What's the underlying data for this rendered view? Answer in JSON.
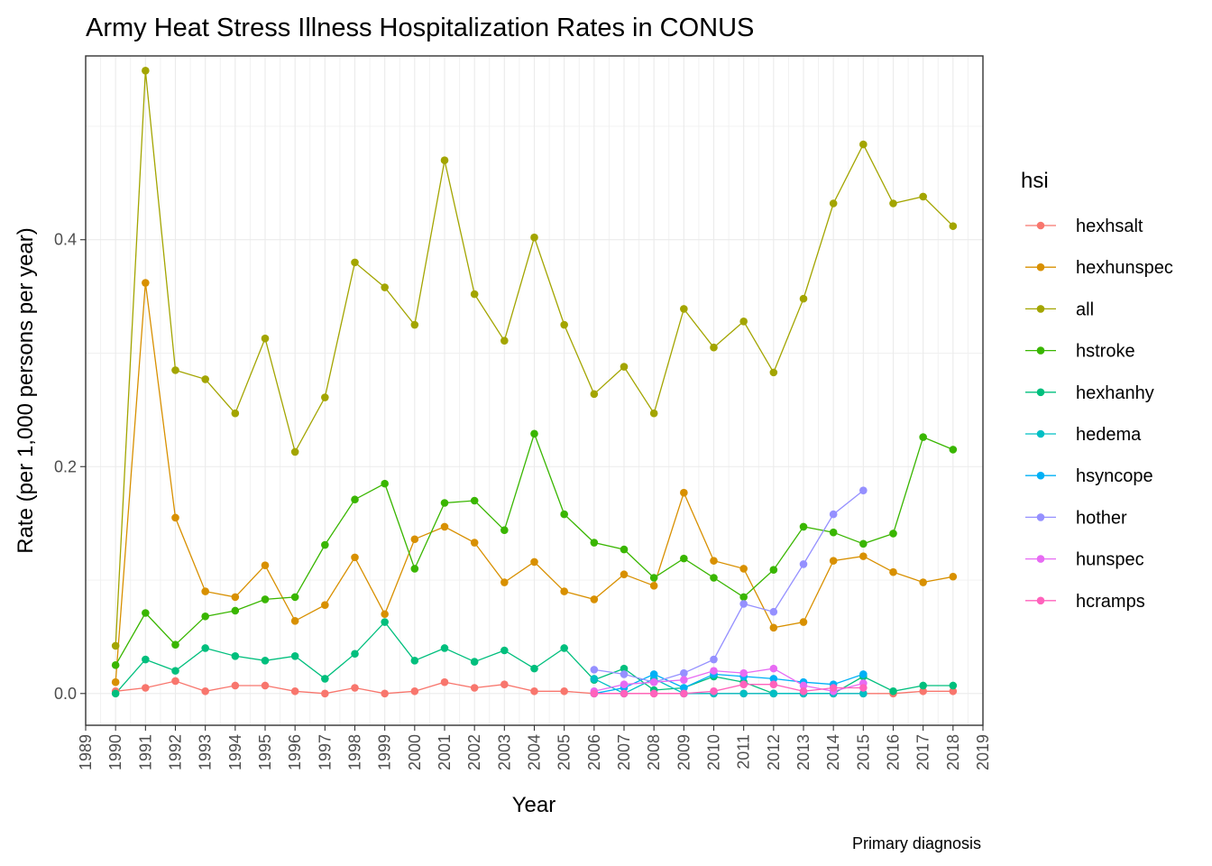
{
  "chart_data": {
    "type": "line",
    "title": "Army Heat Stress Illness Hospitalization Rates in CONUS",
    "xlabel": "Year",
    "ylabel": "Rate (per 1,000 persons per year)",
    "caption": "Primary diagnosis",
    "legend_title": "hsi",
    "legend_position": "right",
    "grid": true,
    "xlim": [
      1989,
      2019
    ],
    "ylim": [
      -0.028,
      0.562
    ],
    "x_ticks": [
      "1989",
      "1990",
      "1991",
      "1992",
      "1993",
      "1994",
      "1995",
      "1996",
      "1997",
      "1998",
      "1999",
      "2000",
      "2001",
      "2002",
      "2003",
      "2004",
      "2005",
      "2006",
      "2007",
      "2008",
      "2009",
      "2010",
      "2011",
      "2012",
      "2013",
      "2014",
      "2015",
      "2016",
      "2017",
      "2018",
      "2019"
    ],
    "y_ticks": [
      {
        "value": 0.0,
        "label": "0.0"
      },
      {
        "value": 0.2,
        "label": "0.2"
      },
      {
        "value": 0.4,
        "label": "0.4"
      }
    ],
    "series": [
      {
        "name": "hexhsalt",
        "color": "#F8766D",
        "x": [
          1990,
          1991,
          1992,
          1993,
          1994,
          1995,
          1996,
          1997,
          1998,
          1999,
          2000,
          2001,
          2002,
          2003,
          2004,
          2005,
          2006,
          2007,
          2008,
          2009,
          2010,
          2011,
          2012,
          2013,
          2014,
          2015,
          2016,
          2017,
          2018
        ],
        "y": [
          0.002,
          0.005,
          0.011,
          0.002,
          0.007,
          0.007,
          0.002,
          0.0,
          0.005,
          0.0,
          0.002,
          0.01,
          0.005,
          0.008,
          0.002,
          0.002,
          0.0,
          0.0,
          0.0,
          0.0,
          0.0,
          0.0,
          0.0,
          0.0,
          0.0,
          0.0,
          0.0,
          0.002,
          0.002
        ]
      },
      {
        "name": "hexhunspec",
        "color": "#D89000",
        "x": [
          1990,
          1991,
          1992,
          1993,
          1994,
          1995,
          1996,
          1997,
          1998,
          1999,
          2000,
          2001,
          2002,
          2003,
          2004,
          2005,
          2006,
          2007,
          2008,
          2009,
          2010,
          2011,
          2012,
          2013,
          2014,
          2015,
          2016,
          2017,
          2018
        ],
        "y": [
          0.01,
          0.362,
          0.155,
          0.09,
          0.085,
          0.113,
          0.064,
          0.078,
          0.12,
          0.07,
          0.136,
          0.147,
          0.133,
          0.098,
          0.116,
          0.09,
          0.083,
          0.105,
          0.095,
          0.177,
          0.117,
          0.11,
          0.058,
          0.063,
          0.117,
          0.121,
          0.107,
          0.098,
          0.103
        ]
      },
      {
        "name": "all",
        "color": "#A3A500",
        "x": [
          1990,
          1991,
          1992,
          1993,
          1994,
          1995,
          1996,
          1997,
          1998,
          1999,
          2000,
          2001,
          2002,
          2003,
          2004,
          2005,
          2006,
          2007,
          2008,
          2009,
          2010,
          2011,
          2012,
          2013,
          2014,
          2015,
          2016,
          2017,
          2018
        ],
        "y": [
          0.042,
          0.549,
          0.285,
          0.277,
          0.247,
          0.313,
          0.213,
          0.261,
          0.38,
          0.358,
          0.325,
          0.47,
          0.352,
          0.311,
          0.402,
          0.325,
          0.264,
          0.288,
          0.247,
          0.339,
          0.305,
          0.328,
          0.283,
          0.348,
          0.432,
          0.484,
          0.432,
          0.438,
          0.412
        ]
      },
      {
        "name": "hstroke",
        "color": "#39B600",
        "x": [
          1990,
          1991,
          1992,
          1993,
          1994,
          1995,
          1996,
          1997,
          1998,
          1999,
          2000,
          2001,
          2002,
          2003,
          2004,
          2005,
          2006,
          2007,
          2008,
          2009,
          2010,
          2011,
          2012,
          2013,
          2014,
          2015,
          2016,
          2017,
          2018
        ],
        "y": [
          0.025,
          0.071,
          0.043,
          0.068,
          0.073,
          0.083,
          0.085,
          0.131,
          0.171,
          0.185,
          0.11,
          0.168,
          0.17,
          0.144,
          0.229,
          0.158,
          0.133,
          0.127,
          0.102,
          0.119,
          0.102,
          0.085,
          0.109,
          0.147,
          0.142,
          0.132,
          0.141,
          0.226,
          0.215
        ]
      },
      {
        "name": "hexhanhy",
        "color": "#00BF7D",
        "x": [
          1990,
          1991,
          1992,
          1993,
          1994,
          1995,
          1996,
          1997,
          1998,
          1999,
          2000,
          2001,
          2002,
          2003,
          2004,
          2005,
          2006,
          2007,
          2008,
          2009,
          2010,
          2011,
          2012,
          2013,
          2014,
          2015,
          2016,
          2017,
          2018
        ],
        "y": [
          0.0,
          0.03,
          0.02,
          0.04,
          0.033,
          0.029,
          0.033,
          0.013,
          0.035,
          0.063,
          0.029,
          0.04,
          0.028,
          0.038,
          0.022,
          0.04,
          0.012,
          0.022,
          0.003,
          0.005,
          0.015,
          0.01,
          0.0,
          0.0,
          0.0,
          0.015,
          0.002,
          0.007,
          0.007
        ]
      },
      {
        "name": "hedema",
        "color": "#00BFC4",
        "x": [
          2006,
          2007,
          2008,
          2009,
          2010,
          2011,
          2012,
          2013,
          2014,
          2015
        ],
        "y": [
          0.013,
          0.0,
          0.013,
          0.0,
          0.0,
          0.0,
          0.0,
          0.0,
          0.0,
          0.0
        ]
      },
      {
        "name": "hsyncope",
        "color": "#00B0F6",
        "x": [
          2006,
          2007,
          2008,
          2009,
          2010,
          2011,
          2012,
          2013,
          2014,
          2015
        ],
        "y": [
          0.0,
          0.005,
          0.017,
          0.005,
          0.017,
          0.015,
          0.013,
          0.01,
          0.008,
          0.017
        ]
      },
      {
        "name": "hother",
        "color": "#9590FF",
        "x": [
          2006,
          2007,
          2008,
          2009,
          2010,
          2011,
          2012,
          2013,
          2014,
          2015
        ],
        "y": [
          0.021,
          0.017,
          0.01,
          0.018,
          0.03,
          0.079,
          0.072,
          0.114,
          0.158,
          0.179
        ]
      },
      {
        "name": "hunspec",
        "color": "#E76BF3",
        "x": [
          2006,
          2007,
          2008,
          2009,
          2010,
          2011,
          2012,
          2013,
          2014,
          2015
        ],
        "y": [
          0.002,
          0.008,
          0.01,
          0.012,
          0.02,
          0.018,
          0.022,
          0.007,
          0.002,
          0.009
        ]
      },
      {
        "name": "hcramps",
        "color": "#FF62BC",
        "x": [
          2006,
          2007,
          2008,
          2009,
          2010,
          2011,
          2012,
          2013,
          2014,
          2015
        ],
        "y": [
          0.0,
          0.0,
          0.0,
          0.0,
          0.002,
          0.008,
          0.008,
          0.002,
          0.005,
          0.005
        ]
      }
    ]
  }
}
